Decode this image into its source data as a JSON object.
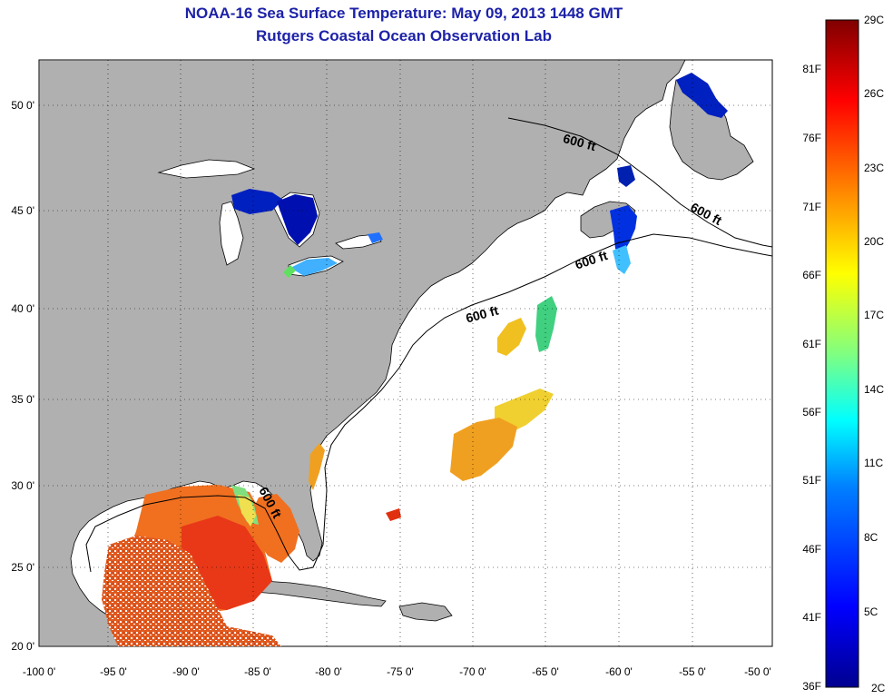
{
  "title": {
    "line1": "NOAA-16 Sea Surface Temperature:  May 09, 2013 1448 GMT",
    "line2": "Rutgers Coastal Ocean Observation Lab"
  },
  "map": {
    "lon_range": [
      -100,
      -50
    ],
    "lat_range": [
      20,
      52.5
    ],
    "x_tick_labels": [
      "-100 0'",
      "-95 0'",
      "-90 0'",
      "-85 0'",
      "-80 0'",
      "-75 0'",
      "-70 0'",
      "-65 0'",
      "-60 0'",
      "-55 0'",
      "-50 0'"
    ],
    "y_tick_labels": [
      "20 0'",
      "25 0'",
      "30 0'",
      "35 0'",
      "40 0'",
      "45 0'",
      "50 0'"
    ],
    "grid": "dotted",
    "land_color": "#b0b0b0",
    "ocean_color": "#ffffff",
    "contour_label": "600 ft",
    "contour_label_count": 5
  },
  "colorbar": {
    "fahrenheit_labels": [
      "81F",
      "76F",
      "71F",
      "66F",
      "61F",
      "56F",
      "51F",
      "46F",
      "41F",
      "36F"
    ],
    "celsius_labels": [
      "29C",
      "26C",
      "23C",
      "20C",
      "17C",
      "14C",
      "11C",
      "8C",
      "5C",
      "2C"
    ],
    "range_c": [
      2,
      29
    ],
    "colormap": "jet",
    "colors": [
      "#00008f",
      "#0000ff",
      "#0080ff",
      "#00ffff",
      "#80ff80",
      "#ffff00",
      "#ff8000",
      "#ff0000",
      "#800000"
    ]
  }
}
